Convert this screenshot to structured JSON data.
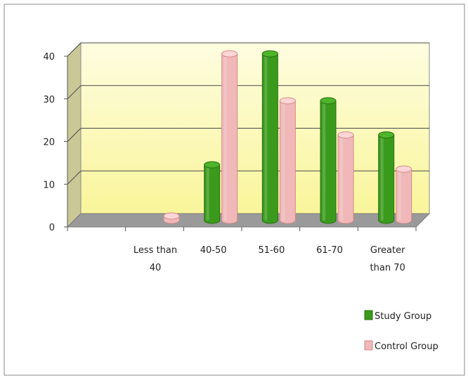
{
  "chart_data": {
    "type": "bar",
    "title": "",
    "xlabel": "",
    "ylabel": "",
    "categories": [
      [
        "",
        ""
      ],
      [
        "Less than",
        "40"
      ],
      [
        "40-50",
        ""
      ],
      [
        "51-60",
        ""
      ],
      [
        "61-70",
        ""
      ],
      [
        "Greater",
        "than 70"
      ]
    ],
    "series": [
      {
        "name": "Study Group",
        "values": [
          0,
          0,
          13,
          39,
          28,
          20
        ],
        "color": "#3a9a1c",
        "dark": "#2a7010",
        "top": "#4cb52a"
      },
      {
        "name": "Control Group",
        "values": [
          0,
          1,
          39,
          28,
          20,
          12
        ],
        "color": "#f0b8b8",
        "dark": "#d48a8a",
        "top": "#fcd6d6"
      }
    ],
    "ylim": [
      0,
      40
    ],
    "yticks": [
      0,
      10,
      20,
      30,
      40
    ],
    "grid": true,
    "legend": "bottom-right",
    "wall_color": "#fdfcc0",
    "floor_color": "#9a9a9a"
  }
}
